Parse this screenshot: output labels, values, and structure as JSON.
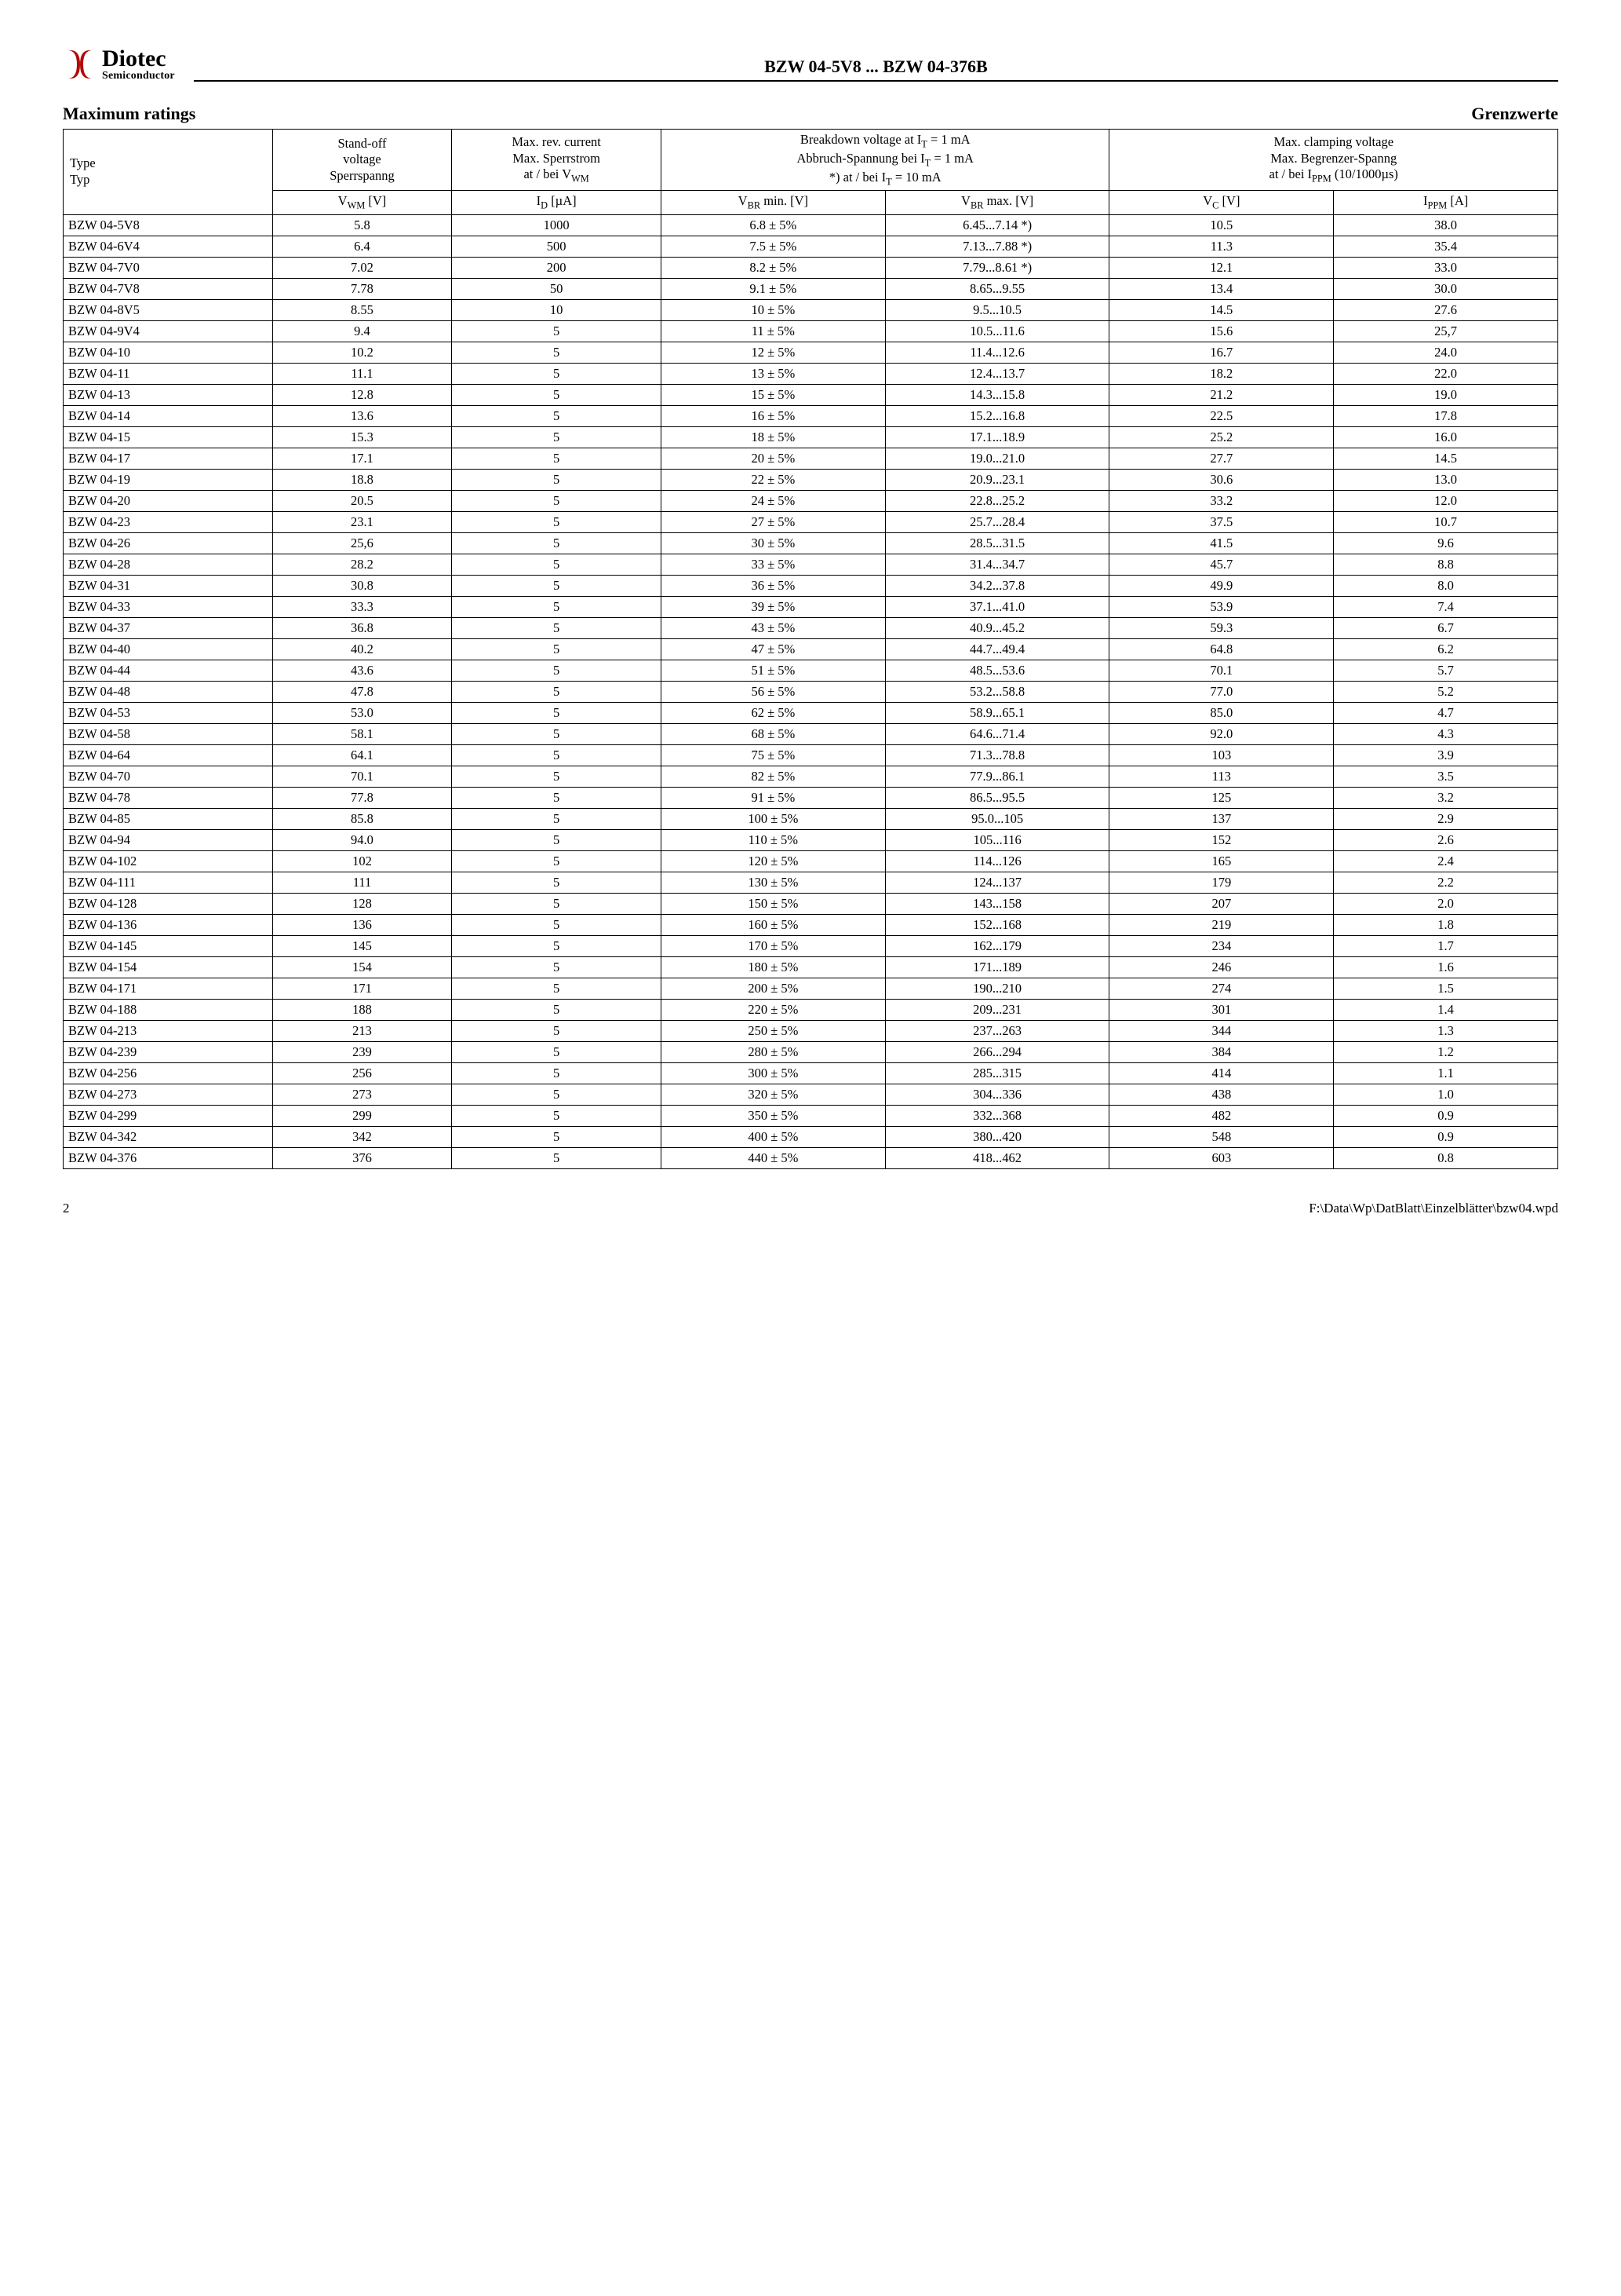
{
  "brand": {
    "name": "Diotec",
    "subtitle": "Semiconductor",
    "logo_color": "#b30808"
  },
  "doc_title": "BZW 04-5V8 ... BZW 04-376B",
  "section": {
    "left": "Maximum ratings",
    "right": "Grenzwerte"
  },
  "table": {
    "columns": {
      "type": {
        "line1": "Type",
        "line2": "Typ"
      },
      "vwm": {
        "line1": "Stand-off",
        "line2": "voltage",
        "line3": "Sperrspanng",
        "unit": "V_WM [V]"
      },
      "id": {
        "line1": "Max. rev. current",
        "line2": "Max. Sperrstrom",
        "line3": "at / bei V_WM",
        "unit": "I_D [µA]"
      },
      "vbr": {
        "line1": "Breakdown voltage at I_T = 1 mA",
        "line2": "Abbruch-Spannung bei I_T = 1 mA",
        "line3": "*) at / bei I_T = 10 mA",
        "min_unit": "V_BR min. [V]",
        "max_unit": "V_BR max. [V]"
      },
      "clamp": {
        "line1": "Max. clamping voltage",
        "line2": "Max. Begrenzer-Spanng",
        "line3": "at / bei I_PPM (10/1000µs)",
        "vc_unit": "V_C [V]",
        "ippm_unit": "I_PPM [A]"
      }
    },
    "rows": [
      [
        "BZW 04-5V8",
        "5.8",
        "1000",
        "6.8  ± 5%",
        "6.45...7.14 *)",
        "10.5",
        "38.0"
      ],
      [
        "BZW 04-6V4",
        "6.4",
        "500",
        "7.5  ± 5%",
        "7.13...7.88 *)",
        "11.3",
        "35.4"
      ],
      [
        "BZW 04-7V0",
        "7.02",
        "200",
        "8.2  ± 5%",
        "7.79...8.61 *)",
        "12.1",
        "33.0"
      ],
      [
        "BZW 04-7V8",
        "7.78",
        "50",
        "9.1  ± 5%",
        "8.65...9.55",
        "13.4",
        "30.0"
      ],
      [
        "BZW 04-8V5",
        "8.55",
        "10",
        "10  ± 5%",
        "9.5...10.5",
        "14.5",
        "27.6"
      ],
      [
        "BZW 04-9V4",
        "9.4",
        "5",
        "11  ± 5%",
        "10.5...11.6",
        "15.6",
        "25,7"
      ],
      [
        "BZW 04-10",
        "10.2",
        "5",
        "12  ± 5%",
        "11.4...12.6",
        "16.7",
        "24.0"
      ],
      [
        "BZW 04-11",
        "11.1",
        "5",
        "13  ± 5%",
        "12.4...13.7",
        "18.2",
        "22.0"
      ],
      [
        "BZW 04-13",
        "12.8",
        "5",
        "15  ± 5%",
        "14.3...15.8",
        "21.2",
        "19.0"
      ],
      [
        "BZW 04-14",
        "13.6",
        "5",
        "16  ± 5%",
        "15.2...16.8",
        "22.5",
        "17.8"
      ],
      [
        "BZW 04-15",
        "15.3",
        "5",
        "18  ± 5%",
        "17.1...18.9",
        "25.2",
        "16.0"
      ],
      [
        "BZW 04-17",
        "17.1",
        "5",
        "20  ± 5%",
        "19.0...21.0",
        "27.7",
        "14.5"
      ],
      [
        "BZW 04-19",
        "18.8",
        "5",
        "22  ± 5%",
        "20.9...23.1",
        "30.6",
        "13.0"
      ],
      [
        "BZW 04-20",
        "20.5",
        "5",
        "24  ± 5%",
        "22.8...25.2",
        "33.2",
        "12.0"
      ],
      [
        "BZW 04-23",
        "23.1",
        "5",
        "27  ± 5%",
        "25.7...28.4",
        "37.5",
        "10.7"
      ],
      [
        "BZW 04-26",
        "25,6",
        "5",
        "30 ± 5%",
        "28.5...31.5",
        "41.5",
        "9.6"
      ],
      [
        "BZW 04-28",
        "28.2",
        "5",
        "33  ± 5%",
        "31.4...34.7",
        "45.7",
        "8.8"
      ],
      [
        "BZW 04-31",
        "30.8",
        "5",
        "36  ± 5%",
        "34.2...37.8",
        "49.9",
        "8.0"
      ],
      [
        "BZW 04-33",
        "33.3",
        "5",
        "39  ± 5%",
        "37.1...41.0",
        "53.9",
        "7.4"
      ],
      [
        "BZW 04-37",
        "36.8",
        "5",
        "43  ± 5%",
        "40.9...45.2",
        "59.3",
        "6.7"
      ],
      [
        "BZW 04-40",
        "40.2",
        "5",
        "47  ± 5%",
        "44.7...49.4",
        "64.8",
        "6.2"
      ],
      [
        "BZW 04-44",
        "43.6",
        "5",
        "51  ± 5%",
        "48.5...53.6",
        "70.1",
        "5.7"
      ],
      [
        "BZW 04-48",
        "47.8",
        "5",
        "56 ± 5%",
        "53.2...58.8",
        "77.0",
        "5.2"
      ],
      [
        "BZW 04-53",
        "53.0",
        "5",
        "62  ± 5%",
        "58.9...65.1",
        "85.0",
        "4.7"
      ],
      [
        "BZW 04-58",
        "58.1",
        "5",
        "68  ± 5%",
        "64.6...71.4",
        "92.0",
        "4.3"
      ],
      [
        "BZW 04-64",
        "64.1",
        "5",
        "75  ± 5%",
        "71.3...78.8",
        "103",
        "3.9"
      ],
      [
        "BZW 04-70",
        "70.1",
        "5",
        "82  ± 5%",
        "77.9...86.1",
        "113",
        "3.5"
      ],
      [
        "BZW 04-78",
        "77.8",
        "5",
        "91  ± 5%",
        "86.5...95.5",
        "125",
        "3.2"
      ],
      [
        "BZW 04-85",
        "85.8",
        "5",
        "100  ± 5%",
        "95.0...105",
        "137",
        "2.9"
      ],
      [
        "BZW 04-94",
        "94.0",
        "5",
        "110  ± 5%",
        "105...116",
        "152",
        "2.6"
      ],
      [
        "BZW 04-102",
        "102",
        "5",
        "120  ± 5%",
        "114...126",
        "165",
        "2.4"
      ],
      [
        "BZW 04-111",
        "111",
        "5",
        "130  ± 5%",
        "124...137",
        "179",
        "2.2"
      ],
      [
        "BZW 04-128",
        "128",
        "5",
        "150  ± 5%",
        "143...158",
        "207",
        "2.0"
      ],
      [
        "BZW 04-136",
        "136",
        "5",
        "160  ± 5%",
        "152...168",
        "219",
        "1.8"
      ],
      [
        "BZW 04-145",
        "145",
        "5",
        "170  ± 5%",
        "162...179",
        "234",
        "1.7"
      ],
      [
        "BZW 04-154",
        "154",
        "5",
        "180  ± 5%",
        "171...189",
        "246",
        "1.6"
      ],
      [
        "BZW 04-171",
        "171",
        "5",
        "200  ± 5%",
        "190...210",
        "274",
        "1.5"
      ],
      [
        "BZW 04-188",
        "188",
        "5",
        "220  ± 5%",
        "209...231",
        "301",
        "1.4"
      ],
      [
        "BZW 04-213",
        "213",
        "5",
        "250  ± 5%",
        "237...263",
        "344",
        "1.3"
      ],
      [
        "BZW 04-239",
        "239",
        "5",
        "280  ± 5%",
        "266...294",
        "384",
        "1.2"
      ],
      [
        "BZW 04-256",
        "256",
        "5",
        "300  ± 5%",
        "285...315",
        "414",
        "1.1"
      ],
      [
        "BZW 04-273",
        "273",
        "5",
        "320  ± 5%",
        "304...336",
        "438",
        "1.0"
      ],
      [
        "BZW 04-299",
        "299",
        "5",
        "350  ± 5%",
        "332...368",
        "482",
        "0.9"
      ],
      [
        "BZW 04-342",
        "342",
        "5",
        "400  ± 5%",
        "380...420",
        "548",
        "0.9"
      ],
      [
        "BZW 04-376",
        "376",
        "5",
        "440  ± 5%",
        "418...462",
        "603",
        "0.8"
      ]
    ]
  },
  "footer": {
    "page": "2",
    "path": "F:\\Data\\Wp\\DatBlatt\\Einzelblätter\\bzw04.wpd"
  }
}
